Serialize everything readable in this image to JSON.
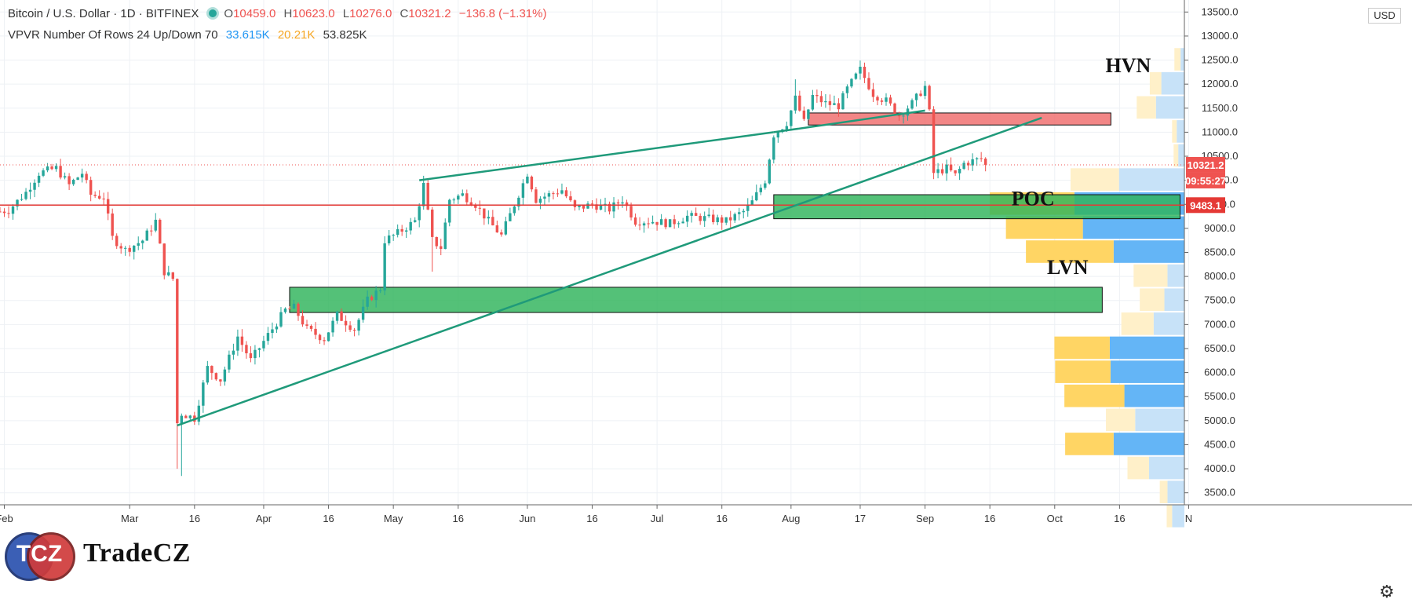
{
  "header": {
    "symbol": "Bitcoin / U.S. Dollar · 1D · BITFINEX",
    "open_label": "O",
    "open": "10459.0",
    "high_label": "H",
    "high": "10623.0",
    "low_label": "L",
    "low": "10276.0",
    "close_label": "C",
    "close": "10321.2",
    "change": "−136.8 (−1.31%)"
  },
  "indicator": {
    "name": "VPVR Number Of Rows 24 Up/Down 70",
    "up_volume": "33.615K",
    "down_volume": "20.21K",
    "total_volume": "53.825K"
  },
  "currency_button": "USD",
  "price_tags": {
    "last": "10321.2",
    "countdown": "09:55:27",
    "poc_line": "9483.1"
  },
  "annotations": {
    "hvn": "HVN",
    "poc": "POC",
    "lvn": "LVN"
  },
  "logo": {
    "monogram": "TCZ",
    "name": "TradeCZ"
  },
  "colors": {
    "up": "#26a69a",
    "down": "#ef5350",
    "trendline": "#1f9a7a",
    "vp_up": "#64b5f6",
    "vp_down": "#ffd564",
    "vp_up_light": "#c7e2f8",
    "vp_down_light": "#fff0c9",
    "zone_green": "#2eb35a",
    "zone_red": "#ef6b6b"
  },
  "chart_data": {
    "type": "candlestick",
    "y_axis": {
      "min": 3250,
      "max": 13750,
      "step": 500,
      "ticks": [
        "3500.0",
        "4000.0",
        "4500.0",
        "5000.0",
        "5500.0",
        "6000.0",
        "6500.0",
        "7000.0",
        "7500.0",
        "8000.0",
        "8500.0",
        "9000.0",
        "9500.0",
        "10000.0",
        "10500.0",
        "11000.0",
        "11500.0",
        "12000.0",
        "12500.0",
        "13000.0",
        "13500.0"
      ]
    },
    "x_axis": {
      "start": "2020-01-31",
      "end": "2020-10-31",
      "labels": [
        {
          "date": "2020-02-01",
          "text": "Feb"
        },
        {
          "date": "2020-03-01",
          "text": "Mar"
        },
        {
          "date": "2020-03-16",
          "text": "16"
        },
        {
          "date": "2020-04-01",
          "text": "Apr"
        },
        {
          "date": "2020-04-16",
          "text": "16"
        },
        {
          "date": "2020-05-01",
          "text": "May"
        },
        {
          "date": "2020-05-16",
          "text": "16"
        },
        {
          "date": "2020-06-01",
          "text": "Jun"
        },
        {
          "date": "2020-06-16",
          "text": "16"
        },
        {
          "date": "2020-07-01",
          "text": "Jul"
        },
        {
          "date": "2020-07-16",
          "text": "16"
        },
        {
          "date": "2020-08-01",
          "text": "Aug"
        },
        {
          "date": "2020-08-17",
          "text": "17"
        },
        {
          "date": "2020-09-01",
          "text": "Sep"
        },
        {
          "date": "2020-09-16",
          "text": "16"
        },
        {
          "date": "2020-10-01",
          "text": "Oct"
        },
        {
          "date": "2020-10-16",
          "text": "16"
        },
        {
          "date": "2020-11-01",
          "text": "N"
        }
      ]
    },
    "close_path": [
      [
        "2020-01-31",
        9350
      ],
      [
        "2020-02-02",
        9380
      ],
      [
        "2020-02-06",
        9750
      ],
      [
        "2020-02-09",
        10150
      ],
      [
        "2020-02-13",
        10250
      ],
      [
        "2020-02-16",
        9900
      ],
      [
        "2020-02-19",
        10150
      ],
      [
        "2020-02-21",
        9700
      ],
      [
        "2020-02-24",
        9650
      ],
      [
        "2020-02-26",
        8800
      ],
      [
        "2020-02-29",
        8550
      ],
      [
        "2020-03-04",
        8750
      ],
      [
        "2020-03-07",
        9150
      ],
      [
        "2020-03-09",
        8100
      ],
      [
        "2020-03-11",
        7950
      ],
      [
        "2020-03-12",
        4950
      ],
      [
        "2020-03-13",
        5150
      ],
      [
        "2020-03-16",
        5050
      ],
      [
        "2020-03-19",
        6100
      ],
      [
        "2020-03-22",
        5850
      ],
      [
        "2020-03-26",
        6750
      ],
      [
        "2020-03-29",
        6250
      ],
      [
        "2020-04-01",
        6650
      ],
      [
        "2020-04-06",
        7300
      ],
      [
        "2020-04-08",
        7350
      ],
      [
        "2020-04-11",
        6900
      ],
      [
        "2020-04-15",
        6700
      ],
      [
        "2020-04-18",
        7200
      ],
      [
        "2020-04-22",
        6900
      ],
      [
        "2020-04-25",
        7500
      ],
      [
        "2020-04-28",
        7750
      ],
      [
        "2020-04-29",
        8750
      ],
      [
        "2020-05-02",
        8900
      ],
      [
        "2020-05-06",
        9150
      ],
      [
        "2020-05-08",
        9900
      ],
      [
        "2020-05-10",
        8750
      ],
      [
        "2020-05-12",
        8600
      ],
      [
        "2020-05-14",
        9600
      ],
      [
        "2020-05-17",
        9700
      ],
      [
        "2020-05-20",
        9500
      ],
      [
        "2020-05-23",
        9150
      ],
      [
        "2020-05-26",
        8850
      ],
      [
        "2020-05-29",
        9500
      ],
      [
        "2020-06-01",
        10150
      ],
      [
        "2020-06-03",
        9600
      ],
      [
        "2020-06-06",
        9700
      ],
      [
        "2020-06-09",
        9800
      ],
      [
        "2020-06-12",
        9400
      ],
      [
        "2020-06-16",
        9500
      ],
      [
        "2020-06-20",
        9400
      ],
      [
        "2020-06-23",
        9600
      ],
      [
        "2020-06-26",
        9150
      ],
      [
        "2020-06-30",
        9150
      ],
      [
        "2020-07-04",
        9100
      ],
      [
        "2020-07-08",
        9250
      ],
      [
        "2020-07-13",
        9200
      ],
      [
        "2020-07-17",
        9150
      ],
      [
        "2020-07-21",
        9350
      ],
      [
        "2020-07-23",
        9550
      ],
      [
        "2020-07-26",
        10000
      ],
      [
        "2020-07-28",
        10950
      ],
      [
        "2020-07-31",
        11200
      ],
      [
        "2020-08-02",
        11700
      ],
      [
        "2020-08-04",
        11200
      ],
      [
        "2020-08-06",
        11750
      ],
      [
        "2020-08-09",
        11600
      ],
      [
        "2020-08-12",
        11550
      ],
      [
        "2020-08-14",
        11900
      ],
      [
        "2020-08-17",
        12300
      ],
      [
        "2020-08-20",
        11800
      ],
      [
        "2020-08-23",
        11650
      ],
      [
        "2020-08-26",
        11350
      ],
      [
        "2020-08-29",
        11600
      ],
      [
        "2020-09-01",
        11950
      ],
      [
        "2020-09-02",
        11400
      ],
      [
        "2020-09-03",
        10150
      ],
      [
        "2020-09-06",
        10250
      ],
      [
        "2020-09-08",
        10100
      ],
      [
        "2020-09-10",
        10350
      ],
      [
        "2020-09-12",
        10400
      ],
      [
        "2020-09-14",
        10450
      ],
      [
        "2020-09-15",
        10321.2
      ]
    ],
    "spikes": [
      [
        "2020-03-12",
        4000
      ],
      [
        "2020-03-13",
        3850
      ],
      [
        "2020-05-10",
        8100
      ],
      [
        "2020-08-17",
        12475
      ],
      [
        "2020-08-02",
        12100
      ]
    ],
    "volume_profile": {
      "price_bins": [
        {
          "price": 12500,
          "up": 0.5,
          "down": 0.8
        },
        {
          "price": 12000,
          "up": 3.0,
          "down": 1.5
        },
        {
          "price": 11500,
          "up": 3.7,
          "down": 2.5
        },
        {
          "price": 11000,
          "up": 1.0,
          "down": 0.6
        },
        {
          "price": 10500,
          "up": 0.8,
          "down": 0.6
        },
        {
          "price": 10000,
          "up": 8.5,
          "down": 6.3
        },
        {
          "price": 9500,
          "up": 14.3,
          "down": 11.0
        },
        {
          "price": 9000,
          "up": 13.2,
          "down": 10.0
        },
        {
          "price": 8500,
          "up": 9.2,
          "down": 11.4
        },
        {
          "price": 8000,
          "up": 2.2,
          "down": 4.4
        },
        {
          "price": 7500,
          "up": 2.6,
          "down": 3.2
        },
        {
          "price": 7000,
          "up": 4.0,
          "down": 4.2
        },
        {
          "price": 6500,
          "up": 9.7,
          "down": 7.2
        },
        {
          "price": 6000,
          "up": 9.6,
          "down": 7.2
        },
        {
          "price": 5500,
          "up": 7.8,
          "down": 7.8
        },
        {
          "price": 5000,
          "up": 6.4,
          "down": 3.8
        },
        {
          "price": 4500,
          "up": 9.2,
          "down": 6.3
        },
        {
          "price": 4000,
          "up": 4.6,
          "down": 2.8
        },
        {
          "price": 3500,
          "up": 2.2,
          "down": 1.0
        },
        {
          "price": 3000,
          "up": 1.6,
          "down": 0.7
        }
      ]
    },
    "trendlines": [
      {
        "from": [
          "2020-03-12",
          4900
        ],
        "to": [
          "2020-09-28",
          11300
        ]
      },
      {
        "from": [
          "2020-05-07",
          10000
        ],
        "to": [
          "2020-07-28",
          11000
        ]
      },
      {
        "from": [
          "2020-07-28",
          11000
        ],
        "to": [
          "2020-09-01",
          11450
        ]
      }
    ],
    "horizontal_lines": [
      {
        "price": 9483.1,
        "from": "2020-01-31"
      }
    ],
    "zones": [
      {
        "name": "hvn",
        "from": "2020-08-05",
        "to": "2020-10-14",
        "low": 11150,
        "high": 11400
      },
      {
        "name": "poc",
        "from": "2020-07-28",
        "to": "2020-10-30",
        "low": 9200,
        "high": 9700
      },
      {
        "name": "lvn",
        "from": "2020-04-07",
        "to": "2020-10-12",
        "low": 7250,
        "high": 7775
      }
    ],
    "annotations_at": [
      {
        "key": "hvn",
        "date": "2020-10-18",
        "price": 12250
      },
      {
        "key": "poc",
        "date": "2020-09-26",
        "price": 9480
      },
      {
        "key": "lvn",
        "date": "2020-10-04",
        "price": 8050
      }
    ]
  }
}
